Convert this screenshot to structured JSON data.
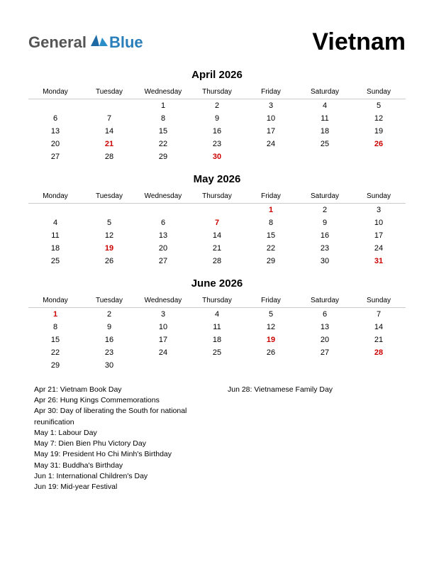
{
  "logo": {
    "text1": "General",
    "text2": "Blue",
    "color1": "#555555",
    "color2": "#2a7fba",
    "shape_color": "#1d6aa5"
  },
  "country": "Vietnam",
  "weekdays": [
    "Monday",
    "Tuesday",
    "Wednesday",
    "Thursday",
    "Friday",
    "Saturday",
    "Sunday"
  ],
  "months": [
    {
      "title": "April 2026",
      "weeks": [
        [
          {
            "d": ""
          },
          {
            "d": ""
          },
          {
            "d": "1"
          },
          {
            "d": "2"
          },
          {
            "d": "3"
          },
          {
            "d": "4"
          },
          {
            "d": "5"
          }
        ],
        [
          {
            "d": "6"
          },
          {
            "d": "7"
          },
          {
            "d": "8"
          },
          {
            "d": "9"
          },
          {
            "d": "10"
          },
          {
            "d": "11"
          },
          {
            "d": "12"
          }
        ],
        [
          {
            "d": "13"
          },
          {
            "d": "14"
          },
          {
            "d": "15"
          },
          {
            "d": "16"
          },
          {
            "d": "17"
          },
          {
            "d": "18"
          },
          {
            "d": "19"
          }
        ],
        [
          {
            "d": "20"
          },
          {
            "d": "21",
            "h": true
          },
          {
            "d": "22"
          },
          {
            "d": "23"
          },
          {
            "d": "24"
          },
          {
            "d": "25"
          },
          {
            "d": "26",
            "h": true
          }
        ],
        [
          {
            "d": "27"
          },
          {
            "d": "28"
          },
          {
            "d": "29"
          },
          {
            "d": "30",
            "h": true
          },
          {
            "d": ""
          },
          {
            "d": ""
          },
          {
            "d": ""
          }
        ]
      ]
    },
    {
      "title": "May 2026",
      "weeks": [
        [
          {
            "d": ""
          },
          {
            "d": ""
          },
          {
            "d": ""
          },
          {
            "d": ""
          },
          {
            "d": "1",
            "h": true
          },
          {
            "d": "2"
          },
          {
            "d": "3"
          }
        ],
        [
          {
            "d": "4"
          },
          {
            "d": "5"
          },
          {
            "d": "6"
          },
          {
            "d": "7",
            "h": true
          },
          {
            "d": "8"
          },
          {
            "d": "9"
          },
          {
            "d": "10"
          }
        ],
        [
          {
            "d": "11"
          },
          {
            "d": "12"
          },
          {
            "d": "13"
          },
          {
            "d": "14"
          },
          {
            "d": "15"
          },
          {
            "d": "16"
          },
          {
            "d": "17"
          }
        ],
        [
          {
            "d": "18"
          },
          {
            "d": "19",
            "h": true
          },
          {
            "d": "20"
          },
          {
            "d": "21"
          },
          {
            "d": "22"
          },
          {
            "d": "23"
          },
          {
            "d": "24"
          }
        ],
        [
          {
            "d": "25"
          },
          {
            "d": "26"
          },
          {
            "d": "27"
          },
          {
            "d": "28"
          },
          {
            "d": "29"
          },
          {
            "d": "30"
          },
          {
            "d": "31",
            "h": true
          }
        ]
      ]
    },
    {
      "title": "June 2026",
      "weeks": [
        [
          {
            "d": "1",
            "h": true
          },
          {
            "d": "2"
          },
          {
            "d": "3"
          },
          {
            "d": "4"
          },
          {
            "d": "5"
          },
          {
            "d": "6"
          },
          {
            "d": "7"
          }
        ],
        [
          {
            "d": "8"
          },
          {
            "d": "9"
          },
          {
            "d": "10"
          },
          {
            "d": "11"
          },
          {
            "d": "12"
          },
          {
            "d": "13"
          },
          {
            "d": "14"
          }
        ],
        [
          {
            "d": "15"
          },
          {
            "d": "16"
          },
          {
            "d": "17"
          },
          {
            "d": "18"
          },
          {
            "d": "19",
            "h": true
          },
          {
            "d": "20"
          },
          {
            "d": "21"
          }
        ],
        [
          {
            "d": "22"
          },
          {
            "d": "23"
          },
          {
            "d": "24"
          },
          {
            "d": "25"
          },
          {
            "d": "26"
          },
          {
            "d": "27"
          },
          {
            "d": "28",
            "h": true
          }
        ],
        [
          {
            "d": "29"
          },
          {
            "d": "30"
          },
          {
            "d": ""
          },
          {
            "d": ""
          },
          {
            "d": ""
          },
          {
            "d": ""
          },
          {
            "d": ""
          }
        ]
      ]
    }
  ],
  "holidays_col1": [
    "Apr 21: Vietnam Book Day",
    "Apr 26: Hung Kings Commemorations",
    "Apr 30: Day of liberating the South for national reunification",
    "May 1: Labour Day",
    "May 7: Dien Bien Phu Victory Day",
    "May 19: President Ho Chi Minh's Birthday",
    "May 31: Buddha's Birthday",
    "Jun 1: International Children's Day",
    "Jun 19: Mid-year Festival"
  ],
  "holidays_col2": [
    "Jun 28: Vietnamese Family Day"
  ]
}
